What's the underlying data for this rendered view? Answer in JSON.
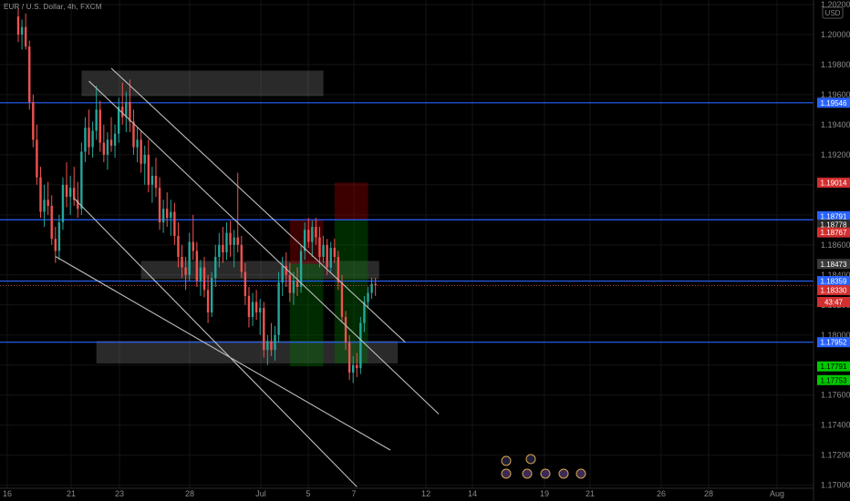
{
  "title": "EUR / U.S. Dollar, 4h, FXCM",
  "currency_badge": "USD",
  "colors": {
    "background": "#000000",
    "up": "#26a69a",
    "down": "#ef5350",
    "line_blue": "#2962ff",
    "trendline": "#bdbdbd",
    "zone": "rgba(150,150,150,0.28)",
    "loss": "rgba(160,0,0,0.38)",
    "profit": "rgba(0,110,0,0.38)",
    "grid": "#141414",
    "axis_text": "#8a8a8a"
  },
  "chart_data": {
    "type": "candlestick",
    "symbol": "EURUSD",
    "timeframe": "4h",
    "x_ticks": [
      "16",
      "21",
      "23",
      "28",
      "Jul",
      "5",
      "7",
      "12",
      "14",
      "19",
      "21",
      "26",
      "28",
      "Aug"
    ],
    "y_ticks": [
      "1.20200",
      "1.20000",
      "1.19800",
      "1.19600",
      "1.19400",
      "1.19200",
      "1.19000",
      "1.18800",
      "1.18600",
      "1.18400",
      "1.18200",
      "1.18000",
      "1.17800",
      "1.17600",
      "1.17400",
      "1.17200",
      "1.17000"
    ],
    "ylim": [
      1.1698,
      1.2023
    ],
    "horizontal_levels": [
      1.19546,
      1.18767,
      1.18359,
      1.17952
    ],
    "price_labels": [
      {
        "value": "1.19546",
        "price": 1.19546,
        "color": "#2962ff",
        "text_color": "#ffffff"
      },
      {
        "value": "1.19014",
        "price": 1.19014,
        "color": "#d32f2f",
        "text_color": "#ffffff"
      },
      {
        "value": "1.18791",
        "price": 1.18791,
        "color": "#2962ff",
        "text_color": "#ffffff"
      },
      {
        "value": "1.18778",
        "price": 1.18735,
        "color": "#2a2a2a",
        "text_color": "#ffffff"
      },
      {
        "value": "1.18767",
        "price": 1.18683,
        "color": "#d32f2f",
        "text_color": "#ffffff"
      },
      {
        "value": "1.18473",
        "price": 1.18473,
        "color": "#3a3a3a",
        "text_color": "#ffffff"
      },
      {
        "value": "1.18359",
        "price": 1.18359,
        "color": "#2962ff",
        "text_color": "#ffffff"
      },
      {
        "value": "1.18330",
        "price": 1.18299,
        "color": "#d32f2f",
        "text_color": "#ffffff"
      },
      {
        "value": "43:47",
        "price": 1.1822,
        "color": "#d32f2f",
        "text_color": "#ffffff"
      },
      {
        "value": "1.17952",
        "price": 1.17952,
        "color": "#2962ff",
        "text_color": "#ffffff"
      },
      {
        "value": "1.17791",
        "price": 1.17791,
        "color": "#00c800",
        "text_color": "#000000"
      },
      {
        "value": "1.17753",
        "price": 1.177,
        "color": "#00c800",
        "text_color": "#000000"
      }
    ],
    "candles": [
      {
        "o": 1.2012,
        "h": 1.2018,
        "l": 1.1995,
        "c": 1.2
      },
      {
        "o": 1.2,
        "h": 1.201,
        "l": 1.199,
        "c": 1.2005
      },
      {
        "o": 1.2005,
        "h": 1.2014,
        "l": 1.199,
        "c": 1.1992
      },
      {
        "o": 1.1992,
        "h": 1.1996,
        "l": 1.195,
        "c": 1.1955
      },
      {
        "o": 1.1955,
        "h": 1.196,
        "l": 1.1925,
        "c": 1.193
      },
      {
        "o": 1.193,
        "h": 1.194,
        "l": 1.19,
        "c": 1.1905
      },
      {
        "o": 1.1905,
        "h": 1.1912,
        "l": 1.1878,
        "c": 1.1882
      },
      {
        "o": 1.1882,
        "h": 1.19,
        "l": 1.1872,
        "c": 1.189
      },
      {
        "o": 1.189,
        "h": 1.1902,
        "l": 1.188,
        "c": 1.1886
      },
      {
        "o": 1.1886,
        "h": 1.1893,
        "l": 1.186,
        "c": 1.1864
      },
      {
        "o": 1.1864,
        "h": 1.1872,
        "l": 1.1848,
        "c": 1.1856
      },
      {
        "o": 1.1856,
        "h": 1.188,
        "l": 1.185,
        "c": 1.1875
      },
      {
        "o": 1.1875,
        "h": 1.1905,
        "l": 1.187,
        "c": 1.19
      },
      {
        "o": 1.19,
        "h": 1.1915,
        "l": 1.1885,
        "c": 1.1892
      },
      {
        "o": 1.1892,
        "h": 1.1906,
        "l": 1.188,
        "c": 1.1898
      },
      {
        "o": 1.1898,
        "h": 1.1912,
        "l": 1.1886,
        "c": 1.189
      },
      {
        "o": 1.189,
        "h": 1.1902,
        "l": 1.1878,
        "c": 1.1884
      },
      {
        "o": 1.1884,
        "h": 1.1928,
        "l": 1.188,
        "c": 1.1922
      },
      {
        "o": 1.1922,
        "h": 1.1945,
        "l": 1.1915,
        "c": 1.1938
      },
      {
        "o": 1.1938,
        "h": 1.195,
        "l": 1.192,
        "c": 1.1925
      },
      {
        "o": 1.1925,
        "h": 1.1942,
        "l": 1.1918,
        "c": 1.1936
      },
      {
        "o": 1.1936,
        "h": 1.1966,
        "l": 1.193,
        "c": 1.195
      },
      {
        "o": 1.195,
        "h": 1.1956,
        "l": 1.1922,
        "c": 1.1928
      },
      {
        "o": 1.1928,
        "h": 1.194,
        "l": 1.1915,
        "c": 1.192
      },
      {
        "o": 1.192,
        "h": 1.1935,
        "l": 1.191,
        "c": 1.193
      },
      {
        "o": 1.193,
        "h": 1.1945,
        "l": 1.1922,
        "c": 1.1926
      },
      {
        "o": 1.1926,
        "h": 1.194,
        "l": 1.1918,
        "c": 1.1934
      },
      {
        "o": 1.1934,
        "h": 1.1958,
        "l": 1.1928,
        "c": 1.1952
      },
      {
        "o": 1.1952,
        "h": 1.1968,
        "l": 1.194,
        "c": 1.1945
      },
      {
        "o": 1.1945,
        "h": 1.1962,
        "l": 1.1935,
        "c": 1.1955
      },
      {
        "o": 1.1955,
        "h": 1.197,
        "l": 1.1935,
        "c": 1.1942
      },
      {
        "o": 1.1942,
        "h": 1.195,
        "l": 1.192,
        "c": 1.1925
      },
      {
        "o": 1.1925,
        "h": 1.1938,
        "l": 1.1915,
        "c": 1.193
      },
      {
        "o": 1.193,
        "h": 1.1936,
        "l": 1.1908,
        "c": 1.1914
      },
      {
        "o": 1.1914,
        "h": 1.1926,
        "l": 1.19,
        "c": 1.192
      },
      {
        "o": 1.192,
        "h": 1.193,
        "l": 1.1895,
        "c": 1.19
      },
      {
        "o": 1.19,
        "h": 1.1912,
        "l": 1.1888,
        "c": 1.1906
      },
      {
        "o": 1.1906,
        "h": 1.1918,
        "l": 1.1892,
        "c": 1.1898
      },
      {
        "o": 1.1898,
        "h": 1.1905,
        "l": 1.187,
        "c": 1.1875
      },
      {
        "o": 1.1875,
        "h": 1.189,
        "l": 1.1868,
        "c": 1.1884
      },
      {
        "o": 1.1884,
        "h": 1.1895,
        "l": 1.1872,
        "c": 1.1878
      },
      {
        "o": 1.1878,
        "h": 1.189,
        "l": 1.1866,
        "c": 1.1882
      },
      {
        "o": 1.1882,
        "h": 1.1888,
        "l": 1.186,
        "c": 1.1866
      },
      {
        "o": 1.1866,
        "h": 1.1875,
        "l": 1.1845,
        "c": 1.1852
      },
      {
        "o": 1.1852,
        "h": 1.186,
        "l": 1.1838,
        "c": 1.1845
      },
      {
        "o": 1.1845,
        "h": 1.1852,
        "l": 1.183,
        "c": 1.184
      },
      {
        "o": 1.184,
        "h": 1.1868,
        "l": 1.1836,
        "c": 1.1862
      },
      {
        "o": 1.1862,
        "h": 1.188,
        "l": 1.185,
        "c": 1.1856
      },
      {
        "o": 1.1856,
        "h": 1.1862,
        "l": 1.1832,
        "c": 1.1836
      },
      {
        "o": 1.1836,
        "h": 1.185,
        "l": 1.1826,
        "c": 1.1845
      },
      {
        "o": 1.1845,
        "h": 1.1852,
        "l": 1.1825,
        "c": 1.183
      },
      {
        "o": 1.183,
        "h": 1.184,
        "l": 1.1808,
        "c": 1.1815
      },
      {
        "o": 1.1815,
        "h": 1.1842,
        "l": 1.1812,
        "c": 1.1838
      },
      {
        "o": 1.1838,
        "h": 1.186,
        "l": 1.1832,
        "c": 1.1852
      },
      {
        "o": 1.1852,
        "h": 1.1868,
        "l": 1.1845,
        "c": 1.186
      },
      {
        "o": 1.186,
        "h": 1.1872,
        "l": 1.1848,
        "c": 1.1855
      },
      {
        "o": 1.1855,
        "h": 1.1875,
        "l": 1.185,
        "c": 1.1868
      },
      {
        "o": 1.1868,
        "h": 1.1876,
        "l": 1.1852,
        "c": 1.186
      },
      {
        "o": 1.186,
        "h": 1.187,
        "l": 1.1845,
        "c": 1.1865
      },
      {
        "o": 1.1865,
        "h": 1.1908,
        "l": 1.1855,
        "c": 1.186
      },
      {
        "o": 1.186,
        "h": 1.1866,
        "l": 1.1838,
        "c": 1.1842
      },
      {
        "o": 1.1842,
        "h": 1.1848,
        "l": 1.182,
        "c": 1.1826
      },
      {
        "o": 1.1826,
        "h": 1.1832,
        "l": 1.1805,
        "c": 1.1812
      },
      {
        "o": 1.1812,
        "h": 1.1828,
        "l": 1.1806,
        "c": 1.1822
      },
      {
        "o": 1.1822,
        "h": 1.183,
        "l": 1.181,
        "c": 1.1815
      },
      {
        "o": 1.1815,
        "h": 1.1824,
        "l": 1.18,
        "c": 1.1818
      },
      {
        "o": 1.1818,
        "h": 1.1822,
        "l": 1.1785,
        "c": 1.179
      },
      {
        "o": 1.179,
        "h": 1.18,
        "l": 1.178,
        "c": 1.1796
      },
      {
        "o": 1.1796,
        "h": 1.1808,
        "l": 1.1786,
        "c": 1.179
      },
      {
        "o": 1.179,
        "h": 1.1806,
        "l": 1.1783,
        "c": 1.18
      },
      {
        "o": 1.18,
        "h": 1.1842,
        "l": 1.1795,
        "c": 1.1835
      },
      {
        "o": 1.1835,
        "h": 1.1852,
        "l": 1.1826,
        "c": 1.1846
      },
      {
        "o": 1.1846,
        "h": 1.1855,
        "l": 1.1832,
        "c": 1.184
      },
      {
        "o": 1.184,
        "h": 1.1848,
        "l": 1.1822,
        "c": 1.1828
      },
      {
        "o": 1.1828,
        "h": 1.1842,
        "l": 1.182,
        "c": 1.1836
      },
      {
        "o": 1.1836,
        "h": 1.1845,
        "l": 1.1826,
        "c": 1.1832
      },
      {
        "o": 1.1832,
        "h": 1.186,
        "l": 1.1828,
        "c": 1.1856
      },
      {
        "o": 1.1856,
        "h": 1.1875,
        "l": 1.185,
        "c": 1.187
      },
      {
        "o": 1.187,
        "h": 1.1878,
        "l": 1.1858,
        "c": 1.1862
      },
      {
        "o": 1.1862,
        "h": 1.1876,
        "l": 1.1852,
        "c": 1.1872
      },
      {
        "o": 1.1872,
        "h": 1.1878,
        "l": 1.186,
        "c": 1.1865
      },
      {
        "o": 1.1865,
        "h": 1.1872,
        "l": 1.1845,
        "c": 1.1852
      },
      {
        "o": 1.1852,
        "h": 1.1866,
        "l": 1.1848,
        "c": 1.186
      },
      {
        "o": 1.186,
        "h": 1.1864,
        "l": 1.184,
        "c": 1.1845
      },
      {
        "o": 1.1845,
        "h": 1.1862,
        "l": 1.1842,
        "c": 1.1858
      },
      {
        "o": 1.1858,
        "h": 1.1864,
        "l": 1.1848,
        "c": 1.1852
      },
      {
        "o": 1.1852,
        "h": 1.1856,
        "l": 1.183,
        "c": 1.1835
      },
      {
        "o": 1.1835,
        "h": 1.184,
        "l": 1.1808,
        "c": 1.1812
      },
      {
        "o": 1.1812,
        "h": 1.1816,
        "l": 1.179,
        "c": 1.1795
      },
      {
        "o": 1.1795,
        "h": 1.18,
        "l": 1.177,
        "c": 1.1775
      },
      {
        "o": 1.1775,
        "h": 1.1786,
        "l": 1.1768,
        "c": 1.178
      },
      {
        "o": 1.178,
        "h": 1.1788,
        "l": 1.1772,
        "c": 1.1778
      },
      {
        "o": 1.1778,
        "h": 1.1812,
        "l": 1.1774,
        "c": 1.1808
      },
      {
        "o": 1.1808,
        "h": 1.1826,
        "l": 1.1802,
        "c": 1.1822
      },
      {
        "o": 1.1822,
        "h": 1.1832,
        "l": 1.1818,
        "c": 1.1828
      },
      {
        "o": 1.1828,
        "h": 1.1838,
        "l": 1.1824,
        "c": 1.1834
      },
      {
        "o": 1.1834,
        "h": 1.1838,
        "l": 1.1826,
        "c": 1.1833
      }
    ],
    "zones": [
      {
        "t0": 17,
        "t1": 82,
        "p0": 1.1959,
        "p1": 1.1976
      },
      {
        "t0": 33,
        "t1": 97,
        "p0": 1.18371,
        "p1": 1.18493
      },
      {
        "t0": 21,
        "t1": 102,
        "p0": 1.17811,
        "p1": 1.17961
      }
    ],
    "positions": [
      {
        "t0": 73,
        "t1": 82,
        "entry": 1.18473,
        "stop": 1.18767,
        "target": 1.17791
      },
      {
        "t0": 85,
        "t1": 94,
        "entry": 1.18767,
        "stop": 1.19014,
        "target": 1.17811
      }
    ],
    "trendlines": [
      {
        "t0": 25,
        "p0": 1.19776,
        "t1": 104,
        "p1": 1.17952
      },
      {
        "t0": 19,
        "p0": 1.1969,
        "t1": 113,
        "p1": 1.17474
      },
      {
        "t0": 15,
        "p0": 1.1891,
        "t1": 91,
        "p1": 1.1699
      },
      {
        "t0": 10,
        "p0": 1.18523,
        "t1": 100,
        "p1": 1.17234
      }
    ]
  }
}
